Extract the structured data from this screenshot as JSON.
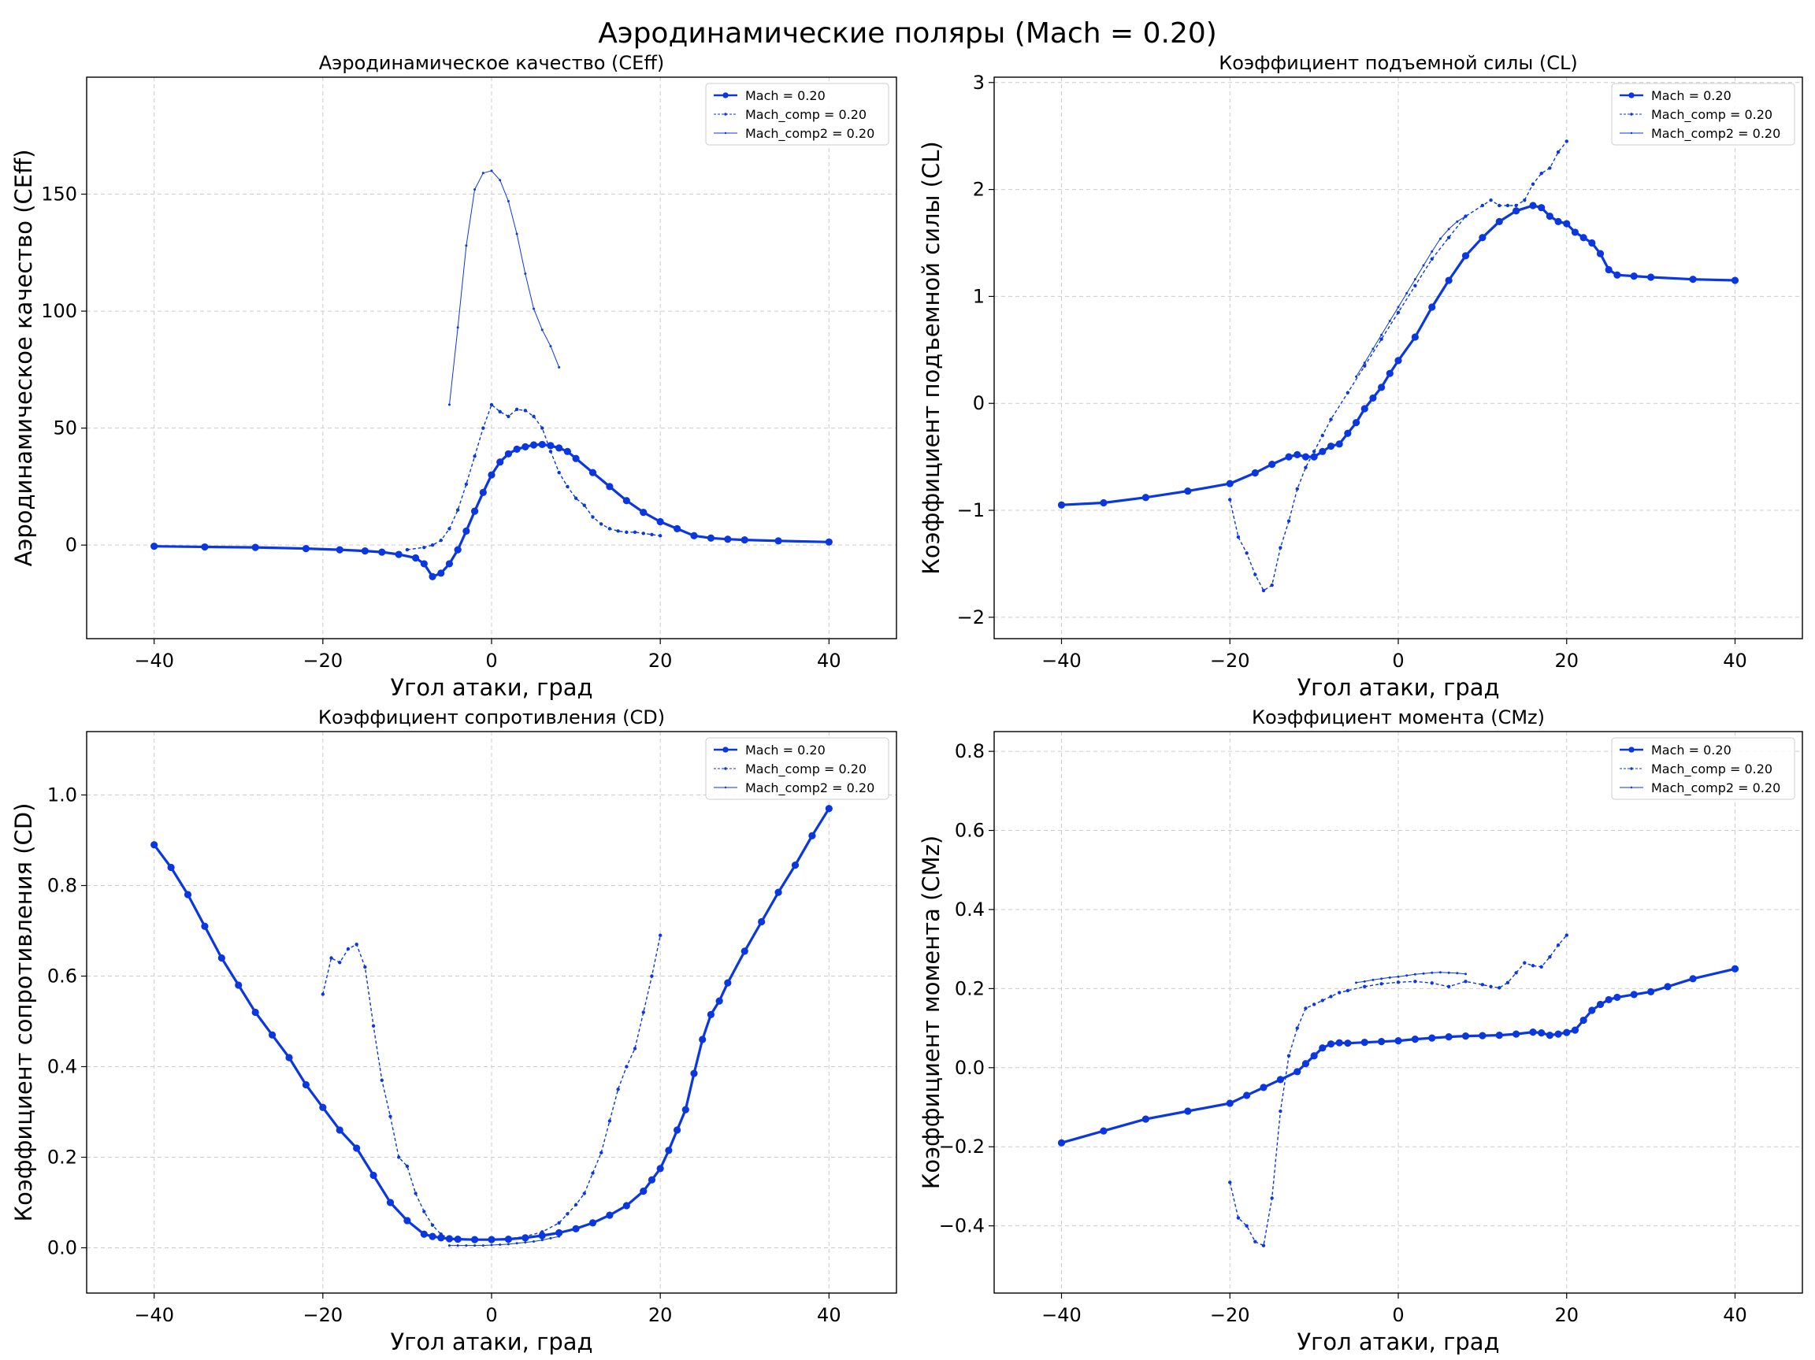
{
  "figure": {
    "title": "Аэродинамические поляры (Mach = 0.20)"
  },
  "colors": {
    "series": "#0a37e0",
    "grid": "#cccccc",
    "axes": "#000000"
  },
  "chart_data": [
    {
      "type": "line",
      "title": "Аэродинамическое качество (CEff)",
      "xlabel": "Угол атаки, град",
      "ylabel": "Аэродинамическое качество (CEff)",
      "xlim": [
        -48,
        48
      ],
      "ylim": [
        -40,
        200
      ],
      "xticks": [
        -40,
        -20,
        0,
        20,
        40
      ],
      "yticks": [
        0,
        50,
        100,
        150
      ],
      "xtick_labels": [
        "−40",
        "−20",
        "0",
        "20",
        "40"
      ],
      "ytick_labels": [
        "0",
        "50",
        "100",
        "150"
      ],
      "grid": true,
      "legend": "top-right",
      "series": [
        {
          "name": "Mach = 0.20",
          "style": "main",
          "x": [
            -40,
            -34,
            -28,
            -22,
            -18,
            -15,
            -13,
            -11,
            -9,
            -8,
            -7,
            -6,
            -5,
            -4,
            -3,
            -2,
            -1,
            0,
            1,
            2,
            3,
            4,
            5,
            6,
            7,
            8,
            9,
            10,
            12,
            14,
            16,
            18,
            20,
            22,
            24,
            26,
            28,
            30,
            34,
            40
          ],
          "y": [
            -0.5,
            -0.8,
            -1.0,
            -1.5,
            -2.0,
            -2.5,
            -3.0,
            -4.0,
            -5.5,
            -8.0,
            -13.5,
            -12.0,
            -8.0,
            -2.0,
            6.0,
            14.5,
            22.5,
            30.0,
            35.5,
            39.0,
            41.0,
            42.0,
            42.8,
            43.0,
            42.5,
            41.5,
            40.0,
            37.0,
            31.0,
            25.0,
            19.0,
            14.0,
            10.0,
            7.0,
            4.0,
            3.0,
            2.5,
            2.2,
            1.8,
            1.3
          ]
        },
        {
          "name": "Mach_comp = 0.20",
          "style": "comp",
          "x": [
            -10,
            -8,
            -7,
            -6,
            -5,
            -4,
            -3,
            -2,
            -1,
            0,
            1,
            2,
            3,
            4,
            5,
            6,
            7,
            8,
            9,
            10,
            11,
            12,
            13,
            14,
            15,
            16,
            17,
            18,
            19,
            20
          ],
          "y": [
            -2.0,
            -1.0,
            0,
            2.0,
            7.0,
            15.0,
            26.0,
            38.0,
            50.0,
            60.0,
            57.0,
            55.0,
            58.0,
            57.5,
            55.0,
            50.0,
            40.0,
            31.0,
            25.0,
            20.0,
            17.0,
            12.0,
            9.0,
            7.0,
            6.0,
            5.5,
            5.5,
            5.0,
            4.5,
            4.0
          ]
        },
        {
          "name": "Mach_comp2 = 0.20",
          "style": "comp2",
          "x": [
            -5,
            -4,
            -3,
            -2,
            -1,
            0,
            1,
            2,
            3,
            4,
            5,
            6,
            7,
            8
          ],
          "y": [
            60,
            93,
            128,
            152,
            159,
            160,
            156,
            147,
            133,
            116,
            101,
            92,
            85,
            76
          ]
        }
      ]
    },
    {
      "type": "line",
      "title": "Коэффициент подъемной силы (CL)",
      "xlabel": "Угол атаки, град",
      "ylabel": "Коэффициент подъемной силы (CL)",
      "xlim": [
        -48,
        48
      ],
      "ylim": [
        -2.2,
        3.05
      ],
      "xticks": [
        -40,
        -20,
        0,
        20,
        40
      ],
      "yticks": [
        -2,
        -1,
        0,
        1,
        2,
        3
      ],
      "xtick_labels": [
        "−40",
        "−20",
        "0",
        "20",
        "40"
      ],
      "ytick_labels": [
        "−2",
        "−1",
        "0",
        "1",
        "2",
        "3"
      ],
      "grid": true,
      "legend": "top-right",
      "series": [
        {
          "name": "Mach = 0.20",
          "style": "main",
          "x": [
            -40,
            -35,
            -30,
            -25,
            -20,
            -17,
            -15,
            -13,
            -12,
            -11,
            -10,
            -9,
            -8,
            -7,
            -6,
            -5,
            -4,
            -3,
            -2,
            -1,
            0,
            2,
            4,
            6,
            8,
            10,
            12,
            14,
            16,
            17,
            18,
            19,
            20,
            21,
            22,
            23,
            24,
            25,
            26,
            28,
            30,
            35,
            40
          ],
          "y": [
            -0.95,
            -0.93,
            -0.88,
            -0.82,
            -0.75,
            -0.65,
            -0.57,
            -0.5,
            -0.48,
            -0.5,
            -0.5,
            -0.45,
            -0.4,
            -0.38,
            -0.28,
            -0.18,
            -0.05,
            0.05,
            0.15,
            0.28,
            0.4,
            0.62,
            0.9,
            1.15,
            1.38,
            1.55,
            1.7,
            1.8,
            1.85,
            1.83,
            1.75,
            1.7,
            1.68,
            1.6,
            1.55,
            1.5,
            1.4,
            1.25,
            1.2,
            1.19,
            1.18,
            1.16,
            1.15
          ]
        },
        {
          "name": "Mach_comp = 0.20",
          "style": "comp",
          "x": [
            -20,
            -19,
            -18,
            -17,
            -16,
            -15,
            -14,
            -13,
            -12,
            -11,
            -10,
            -9,
            -8,
            -6,
            -4,
            -2,
            0,
            2,
            4,
            6,
            8,
            10,
            11,
            12,
            13,
            14,
            15,
            16,
            17,
            18,
            19,
            20
          ],
          "y": [
            -0.9,
            -1.25,
            -1.4,
            -1.6,
            -1.75,
            -1.7,
            -1.35,
            -1.1,
            -0.8,
            -0.6,
            -0.45,
            -0.3,
            -0.15,
            0.1,
            0.35,
            0.6,
            0.85,
            1.1,
            1.35,
            1.55,
            1.75,
            1.85,
            1.9,
            1.85,
            1.85,
            1.85,
            1.9,
            2.05,
            2.15,
            2.2,
            2.35,
            2.45
          ]
        },
        {
          "name": "Mach_comp2 = 0.20",
          "style": "comp2",
          "x": [
            -5,
            -4,
            -3,
            -2,
            -1,
            0,
            1,
            2,
            3,
            4,
            5,
            6,
            7,
            8
          ],
          "y": [
            0.25,
            0.38,
            0.51,
            0.64,
            0.77,
            0.9,
            1.03,
            1.16,
            1.29,
            1.42,
            1.54,
            1.63,
            1.7,
            1.75
          ]
        }
      ]
    },
    {
      "type": "line",
      "title": "Коэффициент сопротивления (CD)",
      "xlabel": "Угол атаки, град",
      "ylabel": "Коэффициент сопротивления (CD)",
      "xlim": [
        -48,
        48
      ],
      "ylim": [
        -0.1,
        1.14
      ],
      "xticks": [
        -40,
        -20,
        0,
        20,
        40
      ],
      "yticks": [
        0,
        0.2,
        0.4,
        0.6,
        0.8,
        1.0
      ],
      "xtick_labels": [
        "−40",
        "−20",
        "0",
        "20",
        "40"
      ],
      "ytick_labels": [
        "0.0",
        "0.2",
        "0.4",
        "0.6",
        "0.8",
        "1.0"
      ],
      "grid": true,
      "legend": "top-right",
      "series": [
        {
          "name": "Mach = 0.20",
          "style": "main",
          "x": [
            -40,
            -38,
            -36,
            -34,
            -32,
            -30,
            -28,
            -26,
            -24,
            -22,
            -20,
            -18,
            -16,
            -14,
            -12,
            -10,
            -8,
            -7,
            -6,
            -5,
            -4,
            -2,
            0,
            2,
            4,
            6,
            8,
            10,
            12,
            14,
            16,
            18,
            19,
            20,
            21,
            22,
            23,
            24,
            25,
            26,
            27,
            28,
            30,
            32,
            34,
            36,
            38,
            40
          ],
          "y": [
            0.89,
            0.84,
            0.78,
            0.71,
            0.64,
            0.58,
            0.52,
            0.47,
            0.42,
            0.36,
            0.31,
            0.26,
            0.22,
            0.16,
            0.1,
            0.06,
            0.03,
            0.025,
            0.022,
            0.02,
            0.019,
            0.018,
            0.018,
            0.019,
            0.022,
            0.027,
            0.033,
            0.042,
            0.055,
            0.072,
            0.093,
            0.125,
            0.15,
            0.175,
            0.215,
            0.26,
            0.305,
            0.385,
            0.46,
            0.515,
            0.545,
            0.585,
            0.655,
            0.72,
            0.785,
            0.845,
            0.91,
            0.97
          ]
        },
        {
          "name": "Mach_comp = 0.20",
          "style": "comp",
          "x": [
            -20,
            -19,
            -18,
            -17,
            -16,
            -15,
            -14,
            -13,
            -12,
            -11,
            -10,
            -9,
            -8,
            -7,
            -6,
            -5,
            -4,
            -2,
            0,
            2,
            4,
            6,
            8,
            9,
            10,
            11,
            12,
            13,
            14,
            15,
            16,
            17,
            18,
            19,
            20
          ],
          "y": [
            0.56,
            0.64,
            0.63,
            0.66,
            0.67,
            0.62,
            0.49,
            0.37,
            0.29,
            0.2,
            0.18,
            0.12,
            0.08,
            0.05,
            0.03,
            0.02,
            0.018,
            0.018,
            0.018,
            0.02,
            0.025,
            0.035,
            0.055,
            0.075,
            0.095,
            0.12,
            0.165,
            0.21,
            0.28,
            0.35,
            0.4,
            0.44,
            0.52,
            0.6,
            0.69
          ]
        },
        {
          "name": "Mach_comp2 = 0.20",
          "style": "comp2",
          "x": [
            -5,
            -4,
            -3,
            -2,
            -1,
            0,
            1,
            2,
            3,
            4,
            5,
            6,
            7,
            8
          ],
          "y": [
            0.005,
            0.005,
            0.005,
            0.005,
            0.005,
            0.006,
            0.007,
            0.008,
            0.01,
            0.012,
            0.014,
            0.017,
            0.021,
            0.025
          ]
        }
      ]
    },
    {
      "type": "line",
      "title": "Коэффициент момента (CMz)",
      "xlabel": "Угол атаки, град",
      "ylabel": "Коэффициент момента (CMz)",
      "xlim": [
        -48,
        48
      ],
      "ylim": [
        -0.57,
        0.85
      ],
      "xticks": [
        -40,
        -20,
        0,
        20,
        40
      ],
      "yticks": [
        -0.4,
        -0.2,
        0,
        0.2,
        0.4,
        0.6,
        0.8
      ],
      "xtick_labels": [
        "−40",
        "−20",
        "0",
        "20",
        "40"
      ],
      "ytick_labels": [
        "−0.4",
        "−0.2",
        "0.0",
        "0.2",
        "0.4",
        "0.6",
        "0.8"
      ],
      "grid": true,
      "legend": "top-right",
      "series": [
        {
          "name": "Mach = 0.20",
          "style": "main",
          "x": [
            -40,
            -35,
            -30,
            -25,
            -20,
            -18,
            -16,
            -14,
            -12,
            -11,
            -10,
            -9,
            -8,
            -7,
            -6,
            -4,
            -2,
            0,
            2,
            4,
            6,
            8,
            10,
            12,
            14,
            16,
            17,
            18,
            19,
            20,
            21,
            22,
            23,
            24,
            25,
            26,
            28,
            30,
            32,
            35,
            40
          ],
          "y": [
            -0.19,
            -0.16,
            -0.13,
            -0.11,
            -0.09,
            -0.07,
            -0.05,
            -0.03,
            -0.01,
            0.01,
            0.03,
            0.05,
            0.06,
            0.063,
            0.062,
            0.064,
            0.066,
            0.068,
            0.072,
            0.075,
            0.078,
            0.08,
            0.081,
            0.082,
            0.085,
            0.09,
            0.088,
            0.082,
            0.085,
            0.089,
            0.095,
            0.12,
            0.145,
            0.16,
            0.172,
            0.178,
            0.185,
            0.192,
            0.205,
            0.225,
            0.25
          ]
        },
        {
          "name": "Mach_comp = 0.20",
          "style": "comp",
          "x": [
            -20,
            -19,
            -18,
            -17,
            -16,
            -15,
            -14,
            -13,
            -12,
            -11,
            -10,
            -9,
            -8,
            -7,
            -6,
            -4,
            -2,
            0,
            2,
            4,
            6,
            8,
            10,
            11,
            12,
            13,
            14,
            15,
            16,
            17,
            18,
            19,
            20
          ],
          "y": [
            -0.29,
            -0.38,
            -0.4,
            -0.44,
            -0.45,
            -0.33,
            -0.11,
            0.03,
            0.1,
            0.15,
            0.16,
            0.17,
            0.18,
            0.19,
            0.195,
            0.205,
            0.212,
            0.216,
            0.218,
            0.214,
            0.205,
            0.218,
            0.21,
            0.205,
            0.202,
            0.215,
            0.24,
            0.265,
            0.258,
            0.255,
            0.28,
            0.31,
            0.335
          ]
        },
        {
          "name": "Mach_comp2 = 0.20",
          "style": "comp2",
          "x": [
            -5,
            -4,
            -3,
            -2,
            -1,
            0,
            1,
            2,
            3,
            4,
            5,
            6,
            7,
            8
          ],
          "y": [
            0.215,
            0.218,
            0.222,
            0.225,
            0.228,
            0.23,
            0.233,
            0.236,
            0.238,
            0.24,
            0.241,
            0.24,
            0.239,
            0.237
          ]
        }
      ]
    }
  ]
}
